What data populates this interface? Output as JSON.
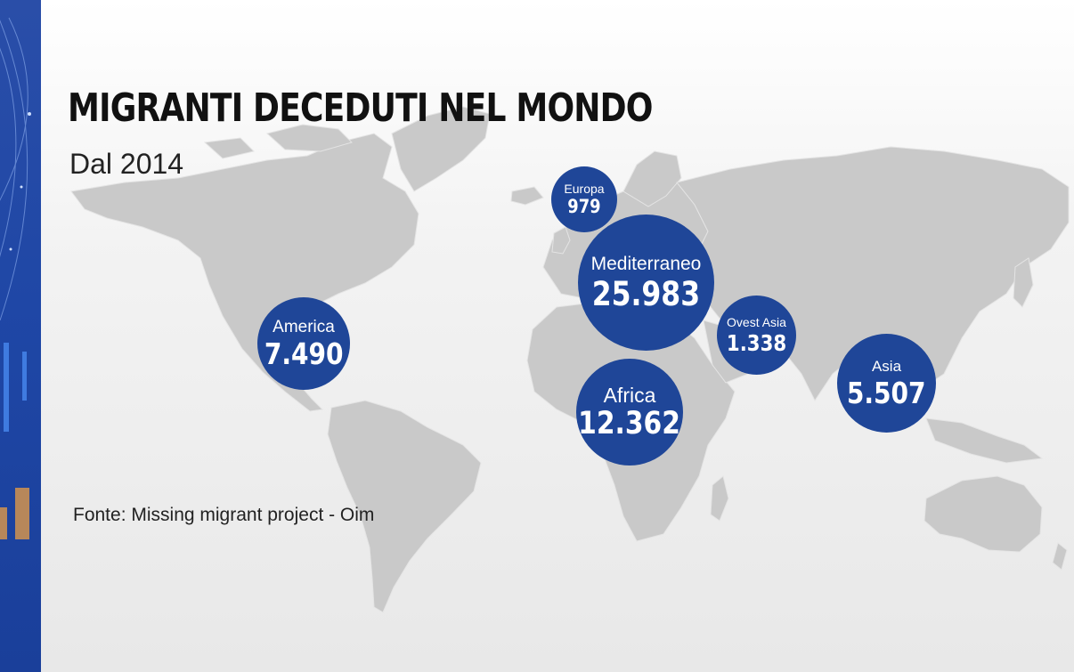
{
  "title": "MIGRANTI DECEDUTI NEL MONDO",
  "subtitle": "Dal 2014",
  "source": "Fonte: Missing migrant project - Oim",
  "colors": {
    "bubble": "#1f4698",
    "land": "#c9c9c9",
    "strip": "#1f47a6",
    "title": "#111111"
  },
  "regions": [
    {
      "id": "europa",
      "label": "Europa",
      "value": "979"
    },
    {
      "id": "mediterraneo",
      "label": "Mediterraneo",
      "value": "25.983"
    },
    {
      "id": "ovest-asia",
      "label": "Ovest Asia",
      "value": "1.338"
    },
    {
      "id": "america",
      "label": "America",
      "value": "7.490"
    },
    {
      "id": "africa",
      "label": "Africa",
      "value": "12.362"
    },
    {
      "id": "asia",
      "label": "Asia",
      "value": "5.507"
    }
  ]
}
